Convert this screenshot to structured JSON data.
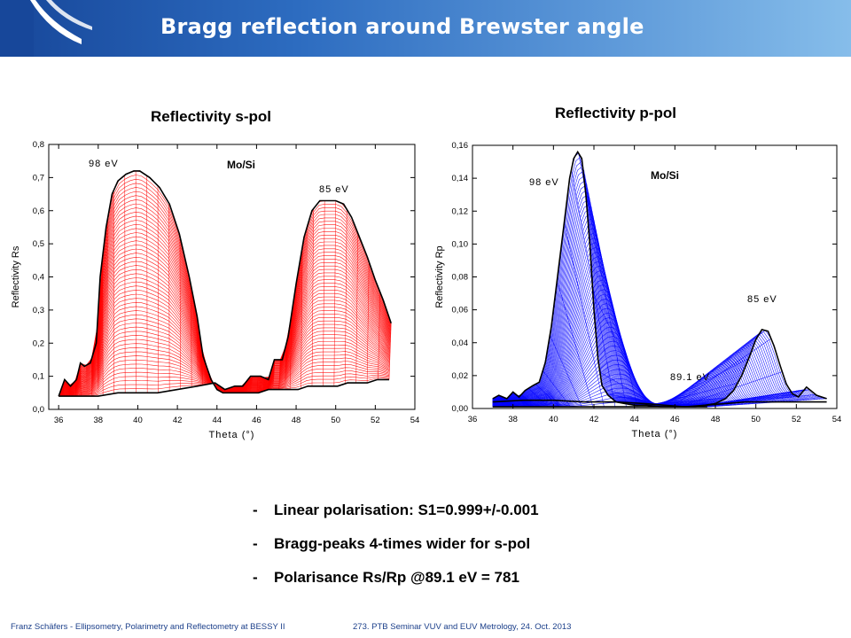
{
  "slide": {
    "title": "Bragg reflection around Brewster angle",
    "accent_color": "#17479a"
  },
  "charts": [
    {
      "heading": "Reflectivity s-pol",
      "inner_label": "Mo/Si",
      "annotations": [
        "98 eV",
        "85 eV"
      ],
      "xlabel": "Theta (°)",
      "ylabel": "Reflectivity Rs",
      "x_ticks": [
        "36",
        "38",
        "40",
        "42",
        "44",
        "46",
        "48",
        "50",
        "52",
        "54"
      ],
      "y_ticks": [
        "0,0",
        "0,1",
        "0,2",
        "0,3",
        "0,4",
        "0,5",
        "0,6",
        "0,7",
        "0,8"
      ]
    },
    {
      "heading": "Reflectivity p-pol",
      "inner_label": "Mo/Si",
      "annotations": [
        "98 eV",
        "85 eV",
        "89.1 eV"
      ],
      "xlabel": "Theta (°)",
      "ylabel": "Reflectivity Rp",
      "x_ticks": [
        "36",
        "38",
        "40",
        "42",
        "44",
        "46",
        "48",
        "50",
        "52",
        "54"
      ],
      "y_ticks": [
        "0,00",
        "0,02",
        "0,04",
        "0,06",
        "0,08",
        "0,10",
        "0,12",
        "0,14",
        "0,16"
      ]
    }
  ],
  "chart_data": [
    {
      "type": "line",
      "title": "Reflectivity s-pol",
      "xlabel": "Theta (°)",
      "ylabel": "Reflectivity Rs",
      "xlim": [
        35.5,
        54
      ],
      "ylim": [
        0,
        0.8
      ],
      "grid": false,
      "series_color": "#ff0000",
      "family": "Mo/Si, photon energies from 98 eV to 85 eV",
      "series": [
        {
          "name": "98 eV",
          "x": [
            36.0,
            36.3,
            36.6,
            36.9,
            37.1,
            37.3,
            37.6,
            37.9,
            38.1,
            38.4,
            38.7,
            39.0,
            39.4,
            39.8,
            40.1,
            40.6,
            41.1,
            41.6,
            42.1,
            42.6,
            43.0,
            43.3,
            43.7,
            44.0,
            44.3,
            44.7,
            45.1,
            45.6,
            46.1,
            46.6,
            47.1,
            47.6,
            48.1,
            48.6,
            49.1,
            49.6,
            50.1,
            50.6,
            51.1,
            51.6,
            52.1,
            52.7
          ],
          "y": [
            0.04,
            0.09,
            0.07,
            0.09,
            0.14,
            0.13,
            0.14,
            0.2,
            0.4,
            0.55,
            0.65,
            0.69,
            0.71,
            0.72,
            0.72,
            0.7,
            0.67,
            0.62,
            0.53,
            0.4,
            0.28,
            0.16,
            0.09,
            0.06,
            0.05,
            0.05,
            0.05,
            0.05,
            0.05,
            0.06,
            0.06,
            0.06,
            0.06,
            0.07,
            0.07,
            0.07,
            0.07,
            0.08,
            0.08,
            0.08,
            0.09,
            0.09
          ]
        },
        {
          "name": "85 eV",
          "x": [
            36.0,
            37.0,
            38.0,
            39.0,
            40.0,
            41.0,
            42.0,
            43.0,
            43.9,
            44.4,
            44.9,
            45.3,
            45.7,
            46.2,
            46.6,
            46.9,
            47.3,
            47.6,
            48.0,
            48.4,
            48.8,
            49.2,
            49.6,
            50.0,
            50.4,
            50.8,
            51.2,
            51.6,
            52.0,
            52.4,
            52.8
          ],
          "y": [
            0.04,
            0.04,
            0.04,
            0.05,
            0.05,
            0.05,
            0.06,
            0.07,
            0.08,
            0.06,
            0.07,
            0.07,
            0.1,
            0.1,
            0.09,
            0.15,
            0.15,
            0.22,
            0.38,
            0.52,
            0.6,
            0.63,
            0.63,
            0.63,
            0.62,
            0.58,
            0.52,
            0.46,
            0.39,
            0.33,
            0.26
          ]
        }
      ]
    },
    {
      "type": "line",
      "title": "Reflectivity p-pol",
      "xlabel": "Theta (°)",
      "ylabel": "Reflectivity Rp",
      "xlim": [
        36,
        54
      ],
      "ylim": [
        0,
        0.16
      ],
      "grid": false,
      "series_color": "#0000ff",
      "family": "Mo/Si, photon energies from 98 eV to 85 eV",
      "series": [
        {
          "name": "98 eV",
          "x": [
            37.0,
            37.3,
            37.7,
            38.0,
            38.3,
            38.6,
            39.0,
            39.3,
            39.6,
            39.9,
            40.2,
            40.5,
            40.8,
            41.0,
            41.2,
            41.4,
            41.6,
            41.8,
            42.0,
            42.2,
            42.4,
            42.7,
            43.1,
            43.5,
            44.0,
            44.6,
            45.3,
            46.0,
            46.8,
            47.6
          ],
          "y": [
            0.006,
            0.008,
            0.006,
            0.01,
            0.007,
            0.011,
            0.014,
            0.016,
            0.028,
            0.05,
            0.08,
            0.11,
            0.14,
            0.152,
            0.156,
            0.152,
            0.13,
            0.1,
            0.06,
            0.03,
            0.014,
            0.008,
            0.004,
            0.003,
            0.002,
            0.002,
            0.001,
            0.001,
            0.001,
            0.001
          ]
        },
        {
          "name": "89.1 eV",
          "x": [
            37.0,
            38.5,
            40.0,
            41.5,
            43.0,
            44.5,
            45.5,
            46.5,
            47.5,
            48.5,
            49.5,
            50.5,
            51.5,
            52.5,
            53.5
          ],
          "y": [
            0.004,
            0.005,
            0.005,
            0.004,
            0.004,
            0.003,
            0.002,
            0.001,
            0.002,
            0.003,
            0.004,
            0.004,
            0.004,
            0.004,
            0.004
          ]
        },
        {
          "name": "85 eV",
          "x": [
            37.0,
            39.0,
            41.0,
            43.0,
            45.0,
            46.0,
            47.0,
            47.5,
            48.0,
            48.5,
            48.9,
            49.3,
            49.7,
            50.0,
            50.3,
            50.6,
            50.9,
            51.2,
            51.5,
            51.8,
            52.1,
            52.5,
            53.0,
            53.5
          ],
          "y": [
            0.001,
            0.001,
            0.001,
            0.001,
            0.001,
            0.001,
            0.001,
            0.002,
            0.003,
            0.006,
            0.011,
            0.02,
            0.032,
            0.042,
            0.048,
            0.047,
            0.038,
            0.026,
            0.015,
            0.009,
            0.007,
            0.013,
            0.008,
            0.006
          ]
        }
      ]
    }
  ],
  "bullets": [
    {
      "dash": "-",
      "text": "Linear polarisation: S1=0.999+/-0.001"
    },
    {
      "dash": "-",
      "text": "Bragg-peaks 4-times wider for s-pol"
    },
    {
      "dash": "-",
      "text": "Polarisance Rs/Rp @89.1 eV = 781"
    }
  ],
  "footer": {
    "left": "Franz Schäfers - Ellipsometry, Polarimetry and Reflectometry at BESSY II",
    "right": "273. PTB Seminar VUV and EUV Metrology, 24. Oct. 2013"
  }
}
